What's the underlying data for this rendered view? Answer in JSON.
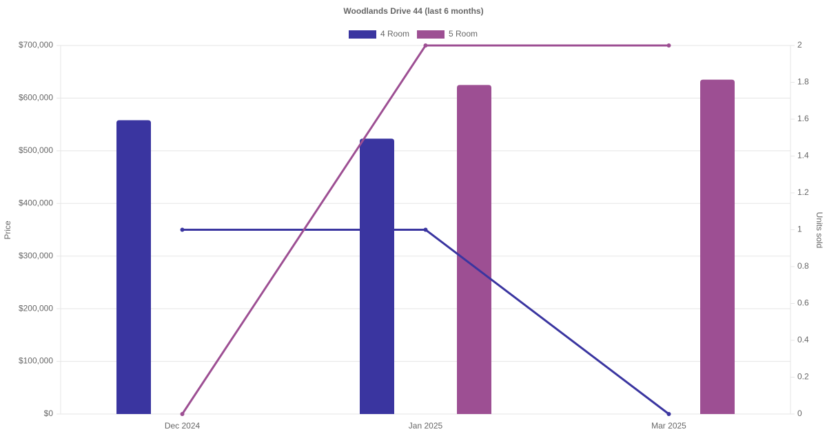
{
  "chart_data": {
    "type": "bar_line",
    "title": "Woodlands Drive 44 (last 6 months)",
    "categories": [
      "Dec 2024",
      "Jan 2025",
      "Mar 2025"
    ],
    "series": [
      {
        "name": "4 Room",
        "color": "#3a35a0",
        "values": [
          558000,
          523000,
          null
        ],
        "units": [
          1,
          1,
          0
        ]
      },
      {
        "name": "5 Room",
        "color": "#9d4f93",
        "values": [
          null,
          625000,
          635000
        ],
        "units": [
          0,
          2,
          2
        ]
      }
    ],
    "y_label": "Price",
    "y2_label": "Units sold",
    "ylim": [
      0,
      700000
    ],
    "yticks": [
      {
        "value": 0,
        "label": "$0"
      },
      {
        "value": 100000,
        "label": "$100,000"
      },
      {
        "value": 200000,
        "label": "$200,000"
      },
      {
        "value": 300000,
        "label": "$300,000"
      },
      {
        "value": 400000,
        "label": "$400,000"
      },
      {
        "value": 500000,
        "label": "$500,000"
      },
      {
        "value": 600000,
        "label": "$600,000"
      },
      {
        "value": 700000,
        "label": "$700,000"
      }
    ],
    "y2lim": [
      0,
      2
    ],
    "y2ticks": [
      0,
      0.2,
      0.4,
      0.6,
      0.8,
      1,
      1.2,
      1.4,
      1.6,
      1.8,
      2
    ],
    "grid": true,
    "legend": "top"
  }
}
